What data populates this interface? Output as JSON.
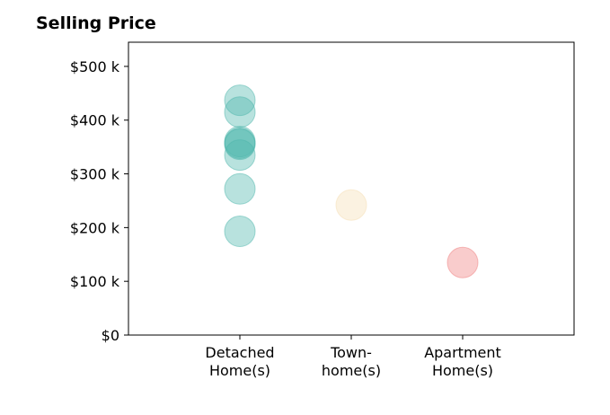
{
  "chart_data": {
    "type": "scatter",
    "title": "Selling Price",
    "xlabel": "",
    "ylabel": "",
    "categories": [
      [
        "Detached",
        "Home(s)"
      ],
      [
        "Town-",
        "home(s)"
      ],
      [
        "Apartment",
        "Home(s)"
      ]
    ],
    "y_ticks": [
      0,
      100000,
      200000,
      300000,
      400000,
      500000
    ],
    "y_tick_labels": [
      "$0",
      "$100 k",
      "$200 k",
      "$300 k",
      "$400 k",
      "$500 k"
    ],
    "ylim": [
      0,
      545000
    ],
    "grid": false,
    "series": [
      {
        "category_index": 0,
        "color": "#4DB6AC",
        "values": [
          437000,
          415000,
          360000,
          357000,
          355000,
          335000,
          272000,
          193000
        ]
      },
      {
        "category_index": 1,
        "color": "#F5DEB3",
        "values": [
          242000
        ]
      },
      {
        "category_index": 2,
        "color": "#F08080",
        "values": [
          135000
        ]
      }
    ]
  }
}
